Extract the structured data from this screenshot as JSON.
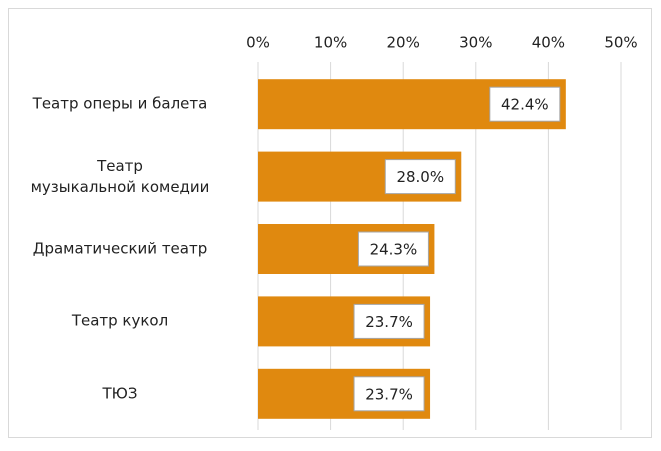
{
  "chart_data": {
    "type": "bar",
    "orientation": "horizontal",
    "categories": [
      "Театр оперы и балета",
      "Театр\nмузыкальной комедии",
      "Драматический театр",
      "Театр кукол",
      "ТЮЗ"
    ],
    "values": [
      42.4,
      28.0,
      24.3,
      23.7,
      23.7
    ],
    "value_labels": [
      "42.4%",
      "28.0%",
      "24.3%",
      "23.7%",
      "23.7%"
    ],
    "color": "#e0890f",
    "xlim": [
      0,
      50
    ],
    "xticks": [
      {
        "value": 0,
        "label": "0%"
      },
      {
        "value": 10,
        "label": "10%"
      },
      {
        "value": 20,
        "label": "20%"
      },
      {
        "value": 30,
        "label": "30%"
      },
      {
        "value": 40,
        "label": "40%"
      },
      {
        "value": 50,
        "label": "50%"
      }
    ],
    "grid": true
  }
}
